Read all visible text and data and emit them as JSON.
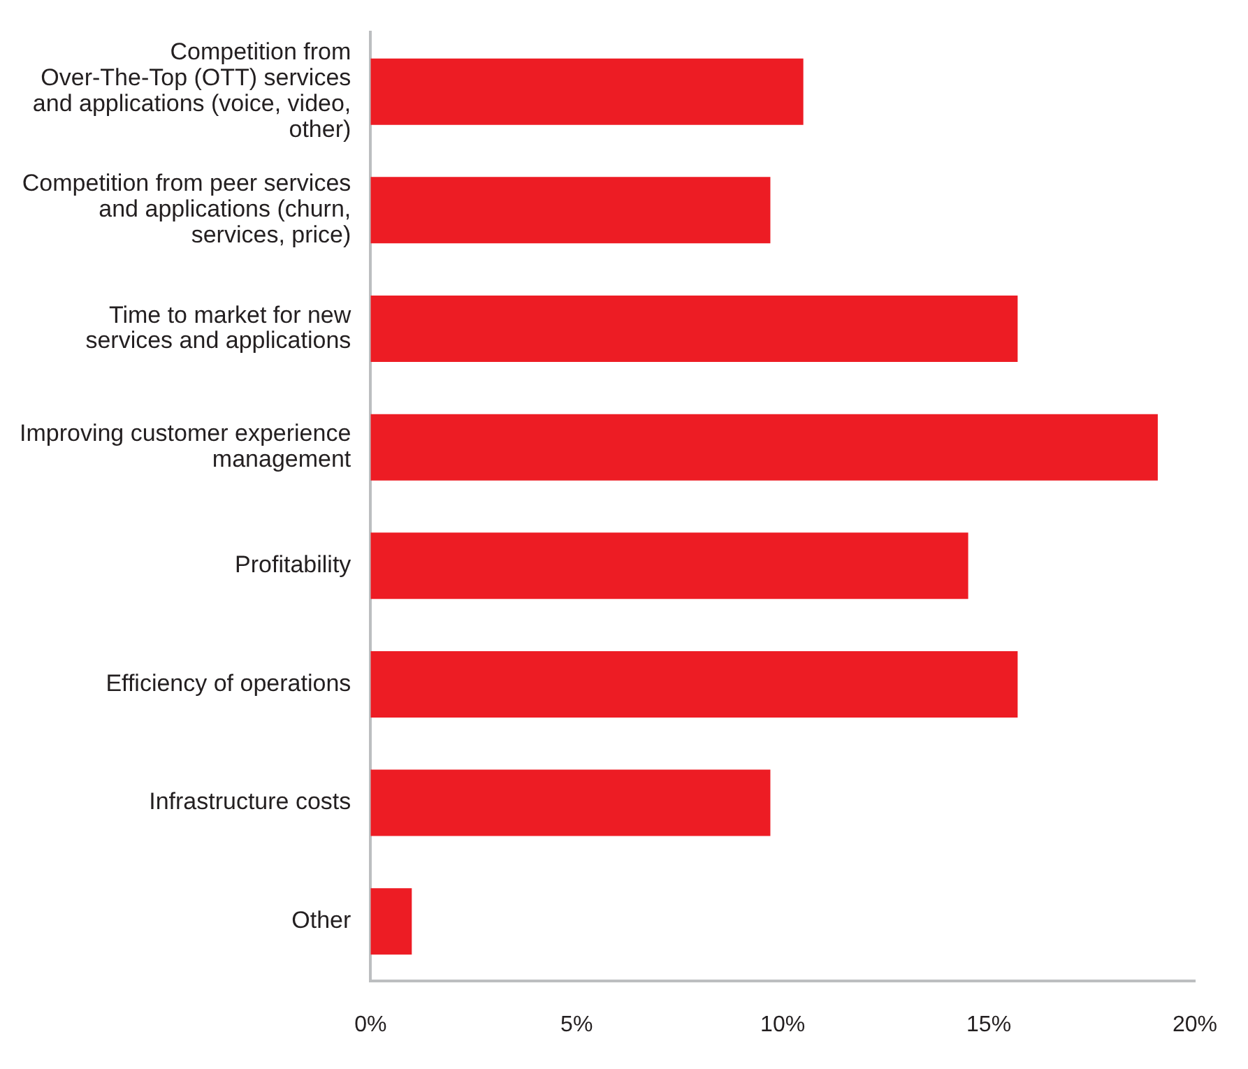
{
  "chart_data": {
    "type": "bar",
    "orientation": "horizontal",
    "categories": [
      "Competition from Over-The-Top (OTT) services and applications (voice, video, other)",
      "Competition from peer services and applications (churn, services, price)",
      "Time to market for new services and applications",
      "Improving customer experience management",
      "Profitability",
      "Efficiency of operations",
      "Infrastructure costs",
      "Other"
    ],
    "values": [
      10.5,
      9.7,
      15.7,
      19.1,
      14.5,
      15.7,
      9.7,
      1.0
    ],
    "color": "#ed1c24",
    "xlim": [
      0,
      20
    ],
    "xticks": [
      {
        "value": 0,
        "label": "0%"
      },
      {
        "value": 5,
        "label": "5%"
      },
      {
        "value": 10,
        "label": "10%"
      },
      {
        "value": 15,
        "label": "15%"
      },
      {
        "value": 20,
        "label": "20%"
      }
    ],
    "grid": false,
    "legend": false
  }
}
